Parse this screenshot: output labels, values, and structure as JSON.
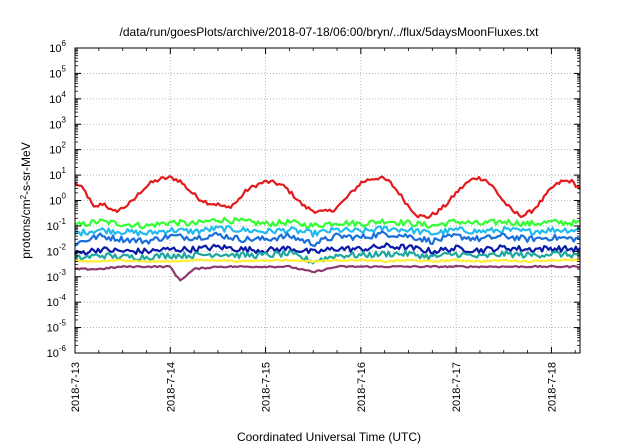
{
  "chart_data": {
    "type": "line",
    "title": "/data/run/goesPlots/archive/2018-07-18/06:00/bryn/../flux/5daysMoonFluxes.txt",
    "xlabel": "Coordinated Universal Time (UTC)",
    "ylabel_parts": {
      "before": "protons/cm",
      "sup": "2",
      "after": "-s-sr-MeV"
    },
    "y_scale": "log",
    "ylim": [
      1e-06,
      1000000
    ],
    "y_ticks": [
      {
        "base": "10",
        "exp": "-6"
      },
      {
        "base": "10",
        "exp": "-5"
      },
      {
        "base": "10",
        "exp": "-4"
      },
      {
        "base": "10",
        "exp": "-3"
      },
      {
        "base": "10",
        "exp": "-2"
      },
      {
        "base": "10",
        "exp": "-1"
      },
      {
        "base": "10",
        "exp": "0"
      },
      {
        "base": "10",
        "exp": "1"
      },
      {
        "base": "10",
        "exp": "2"
      },
      {
        "base": "10",
        "exp": "3"
      },
      {
        "base": "10",
        "exp": "4"
      },
      {
        "base": "10",
        "exp": "5"
      },
      {
        "base": "10",
        "exp": "6"
      }
    ],
    "xlim_days": [
      0,
      5.3
    ],
    "x_ticks": [
      "2018-7-13",
      "2018-7-14",
      "2018-7-15",
      "2018-7-16",
      "2018-7-17",
      "2018-7-18"
    ],
    "grid": true,
    "colors": {
      "red": "#e31a1c",
      "green": "#33ff33",
      "cyan": "#22bbee",
      "blue": "#1a6fdd",
      "darkblue": "#0a1aa8",
      "teal": "#1fa8a0",
      "yellow": "#ffee33",
      "purple": "#8b3a6e"
    },
    "series": [
      {
        "color": "red",
        "x_days": [
          0,
          0.1,
          0.2,
          0.3,
          0.4,
          0.5,
          0.6,
          0.7,
          0.8,
          0.9,
          1.0,
          1.1,
          1.2,
          1.3,
          1.4,
          1.5,
          1.6,
          1.7,
          1.8,
          1.9,
          2.0,
          2.1,
          2.2,
          2.3,
          2.4,
          2.5,
          2.6,
          2.7,
          2.8,
          2.9,
          3.0,
          3.1,
          3.2,
          3.3,
          3.4,
          3.5,
          3.6,
          3.7,
          3.8,
          3.9,
          4.0,
          4.1,
          4.2,
          4.3,
          4.4,
          4.5,
          4.6,
          4.7,
          4.8,
          4.9,
          5.0,
          5.1,
          5.2,
          5.3
        ],
        "values": [
          5,
          2.5,
          0.5,
          0.8,
          0.35,
          0.5,
          0.9,
          2.5,
          5,
          7,
          8,
          6,
          2.5,
          1.2,
          0.8,
          0.7,
          0.5,
          0.9,
          2.5,
          4,
          5.5,
          5,
          3.5,
          1.5,
          0.6,
          0.4,
          0.35,
          0.4,
          0.8,
          2,
          5,
          7,
          8,
          5.5,
          2,
          0.6,
          0.25,
          0.22,
          0.35,
          0.7,
          2,
          4.5,
          8,
          7,
          3,
          0.9,
          0.35,
          0.25,
          0.4,
          1,
          3,
          5.5,
          6,
          3
        ]
      },
      {
        "color": "green",
        "x_days": [
          0,
          0.25,
          0.5,
          0.75,
          1.0,
          1.25,
          1.5,
          1.75,
          2.0,
          2.25,
          2.5,
          2.75,
          3.0,
          3.25,
          3.5,
          3.75,
          4.0,
          4.25,
          4.5,
          4.75,
          5.0,
          5.3
        ],
        "values": [
          0.1,
          0.15,
          0.12,
          0.1,
          0.14,
          0.12,
          0.18,
          0.15,
          0.12,
          0.14,
          0.1,
          0.14,
          0.12,
          0.16,
          0.13,
          0.1,
          0.15,
          0.12,
          0.15,
          0.12,
          0.14,
          0.13
        ]
      },
      {
        "color": "cyan",
        "x_days": [
          0,
          0.25,
          0.5,
          0.75,
          1.0,
          1.25,
          1.5,
          1.75,
          2.0,
          2.25,
          2.5,
          2.75,
          3.0,
          3.25,
          3.5,
          3.75,
          4.0,
          4.25,
          4.5,
          4.75,
          5.0,
          5.3
        ],
        "values": [
          0.05,
          0.07,
          0.06,
          0.05,
          0.07,
          0.06,
          0.08,
          0.07,
          0.06,
          0.07,
          0.05,
          0.07,
          0.06,
          0.08,
          0.07,
          0.05,
          0.07,
          0.06,
          0.07,
          0.06,
          0.07,
          0.07
        ]
      },
      {
        "color": "blue",
        "x_days": [
          0,
          0.25,
          0.5,
          0.75,
          1.0,
          1.25,
          1.5,
          1.75,
          2.0,
          2.25,
          2.5,
          2.75,
          3.0,
          3.25,
          3.5,
          3.75,
          4.0,
          4.25,
          4.5,
          4.75,
          5.0,
          5.3
        ],
        "values": [
          0.02,
          0.04,
          0.03,
          0.025,
          0.04,
          0.035,
          0.045,
          0.03,
          0.03,
          0.04,
          0.02,
          0.04,
          0.035,
          0.05,
          0.04,
          0.025,
          0.04,
          0.03,
          0.04,
          0.03,
          0.035,
          0.03
        ]
      },
      {
        "color": "darkblue",
        "x_days": [
          0,
          0.25,
          0.5,
          0.75,
          1.0,
          1.25,
          1.5,
          1.75,
          2.0,
          2.25,
          2.5,
          2.75,
          3.0,
          3.25,
          3.5,
          3.75,
          4.0,
          4.25,
          4.5,
          4.75,
          5.0,
          5.3
        ],
        "values": [
          0.008,
          0.012,
          0.01,
          0.01,
          0.012,
          0.012,
          0.015,
          0.012,
          0.011,
          0.013,
          0.009,
          0.013,
          0.012,
          0.016,
          0.014,
          0.01,
          0.013,
          0.011,
          0.014,
          0.012,
          0.013,
          0.012
        ]
      },
      {
        "color": "teal",
        "x_days": [
          0,
          0.25,
          0.5,
          0.75,
          1.0,
          1.25,
          1.5,
          1.75,
          2.0,
          2.25,
          2.5,
          2.75,
          3.0,
          3.25,
          3.5,
          3.75,
          4.0,
          4.25,
          4.5,
          4.75,
          5.0,
          5.3
        ],
        "values": [
          0.005,
          0.007,
          0.006,
          0.006,
          0.007,
          0.007,
          0.008,
          0.007,
          0.007,
          0.008,
          0.004,
          0.007,
          0.007,
          0.008,
          0.008,
          0.006,
          0.008,
          0.006,
          0.008,
          0.007,
          0.008,
          0.007
        ]
      },
      {
        "color": "yellow",
        "x_days": [
          0,
          0.25,
          0.5,
          0.75,
          1.0,
          1.25,
          1.5,
          1.75,
          2.0,
          2.25,
          2.5,
          2.75,
          3.0,
          3.25,
          3.5,
          3.75,
          4.0,
          4.25,
          4.5,
          4.75,
          5.0,
          5.3
        ],
        "values": [
          0.004,
          0.004,
          0.0045,
          0.004,
          0.004,
          0.0045,
          0.0045,
          0.004,
          0.0045,
          0.0045,
          0.004,
          0.0045,
          0.0045,
          0.004,
          0.0045,
          0.004,
          0.0045,
          0.004,
          0.0045,
          0.004,
          0.0045,
          0.0045
        ]
      },
      {
        "color": "purple",
        "x_days": [
          0,
          0.25,
          0.5,
          0.75,
          1.0,
          1.1,
          1.25,
          1.5,
          1.75,
          2.0,
          2.25,
          2.5,
          2.75,
          3.0,
          3.25,
          3.5,
          3.75,
          4.0,
          4.25,
          4.5,
          4.75,
          5.0,
          5.3
        ],
        "values": [
          0.002,
          0.002,
          0.0025,
          0.0025,
          0.0025,
          0.0007,
          0.002,
          0.0025,
          0.0025,
          0.0025,
          0.0025,
          0.0015,
          0.0025,
          0.0025,
          0.0025,
          0.0025,
          0.0025,
          0.0025,
          0.0025,
          0.0025,
          0.0025,
          0.0025,
          0.0025
        ]
      }
    ]
  }
}
